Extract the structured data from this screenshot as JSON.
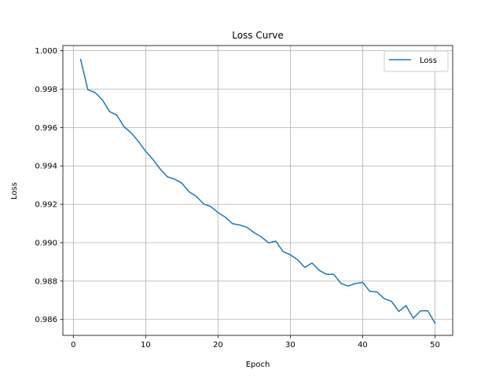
{
  "chart_data": {
    "type": "line",
    "title": "Loss Curve",
    "xlabel": "Epoch",
    "ylabel": "Loss",
    "xlim": [
      -1.45,
      52.45
    ],
    "ylim": [
      0.98517,
      1.00027
    ],
    "xticks": [
      0,
      10,
      20,
      30,
      40,
      50
    ],
    "xtick_labels": [
      "0",
      "10",
      "20",
      "30",
      "40",
      "50"
    ],
    "yticks": [
      0.986,
      0.988,
      0.99,
      0.992,
      0.994,
      0.996,
      0.998,
      1.0
    ],
    "ytick_labels": [
      "0.986",
      "0.988",
      "0.990",
      "0.992",
      "0.994",
      "0.996",
      "0.998",
      "1.000"
    ],
    "grid": true,
    "legend": {
      "placement": "upper-right"
    },
    "series": [
      {
        "name": "Loss",
        "color": "#1f77b4",
        "x": [
          1,
          2,
          3,
          4,
          5,
          6,
          7,
          8,
          9,
          10,
          11,
          12,
          13,
          14,
          15,
          16,
          17,
          18,
          19,
          20,
          21,
          22,
          23,
          24,
          25,
          26,
          27,
          28,
          29,
          30,
          31,
          32,
          33,
          34,
          35,
          36,
          37,
          38,
          39,
          40,
          41,
          42,
          43,
          44,
          45,
          46,
          47,
          48,
          49,
          50
        ],
        "y": [
          0.99955,
          0.99797,
          0.99782,
          0.99745,
          0.99683,
          0.99665,
          0.99604,
          0.99572,
          0.99527,
          0.99476,
          0.99434,
          0.99384,
          0.99343,
          0.99331,
          0.9931,
          0.99265,
          0.99242,
          0.99202,
          0.99188,
          0.99157,
          0.99133,
          0.99099,
          0.99092,
          0.9908,
          0.99052,
          0.9903,
          0.98999,
          0.99008,
          0.98953,
          0.98937,
          0.98911,
          0.98871,
          0.98894,
          0.98856,
          0.98835,
          0.98835,
          0.98788,
          0.98774,
          0.98787,
          0.98793,
          0.98746,
          0.98743,
          0.98708,
          0.98694,
          0.98642,
          0.98672,
          0.98606,
          0.98645,
          0.98645,
          0.98581
        ]
      }
    ]
  }
}
